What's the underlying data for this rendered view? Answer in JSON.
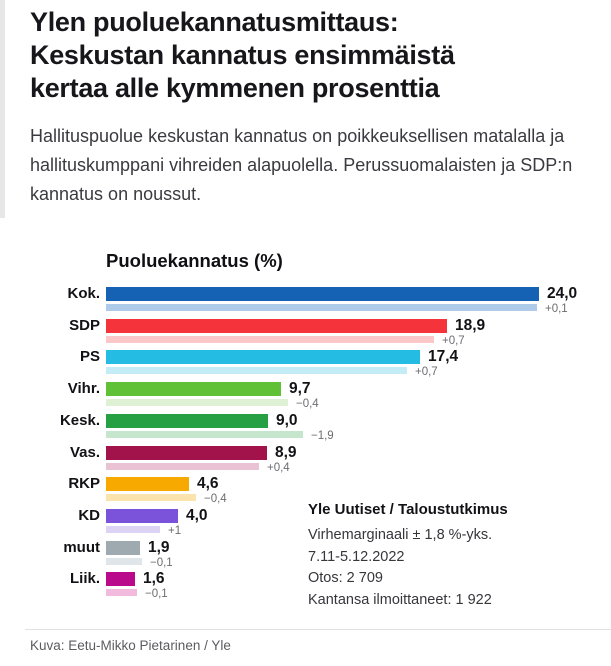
{
  "article": {
    "title_lines": [
      "Ylen puoluekannatusmittaus:",
      "Keskustan kannatus ensimmäistä",
      "kertaa alle kymmenen prosenttia"
    ],
    "lead_lines": [
      "Hallituspuolue keskustan kannatus on poikkeuksellisen matalalla ja",
      "hallituskumppani vihreiden alapuolella. Perussuomalaisten ja SDP:n",
      "kannatus on noussut."
    ],
    "caption": "Kuva: Eetu-Mikko Pietarinen / Yle"
  },
  "chart_data": {
    "type": "bar",
    "orientation": "horizontal",
    "title": "Puoluekannatus (%)",
    "unit": "%",
    "xlim": [
      0,
      24.8
    ],
    "grid": false,
    "legend": "none",
    "note": "thin light bar under each main bar = previous measurement (value minus change)",
    "categories": [
      "Kok.",
      "SDP",
      "PS",
      "Vihr.",
      "Kesk.",
      "Vas.",
      "RKP",
      "KD",
      "muut",
      "Liik."
    ],
    "values": [
      24.0,
      18.9,
      17.4,
      9.7,
      9.0,
      8.9,
      4.6,
      4.0,
      1.9,
      1.6
    ],
    "changes": [
      0.1,
      0.7,
      0.7,
      -0.4,
      -1.9,
      0.4,
      -0.4,
      1.0,
      -0.1,
      -0.1
    ],
    "previous_values": [
      23.9,
      18.2,
      16.7,
      10.1,
      10.9,
      8.5,
      5.0,
      3.0,
      2.0,
      1.7
    ],
    "value_labels": [
      "24,0",
      "18,9",
      "17,4",
      "9,7",
      "9,0",
      "8,9",
      "4,6",
      "4,0",
      "1,9",
      "1,6"
    ],
    "change_labels": [
      "+0,1",
      "+0,7",
      "+0,7",
      "−0,4",
      "−1,9",
      "+0,4",
      "−0,4",
      "+1",
      "−0,1",
      "−0,1"
    ],
    "bar_colors": [
      "#1562b4",
      "#f5333b",
      "#25bce3",
      "#61c136",
      "#27a044",
      "#a2134b",
      "#f8a900",
      "#7b52da",
      "#9ea9b0",
      "#b90a8c"
    ],
    "secondary_bar_colors": [
      "#aecbe9",
      "#fbc7c9",
      "#c3ecf7",
      "#def1d5",
      "#c6e5cd",
      "#e9c3d3",
      "#fbe3ad",
      "#ddd3f4",
      "#dfe5e8",
      "#f2bbdd"
    ]
  },
  "source": {
    "title": "Yle Uutiset / Taloustutkimus",
    "lines": [
      "Virhemarginaali ± 1,8 %-yks.",
      "7.11-5.12.2022",
      "Otos: 2 709",
      "Kantansa ilmoittaneet: 1 922"
    ]
  }
}
